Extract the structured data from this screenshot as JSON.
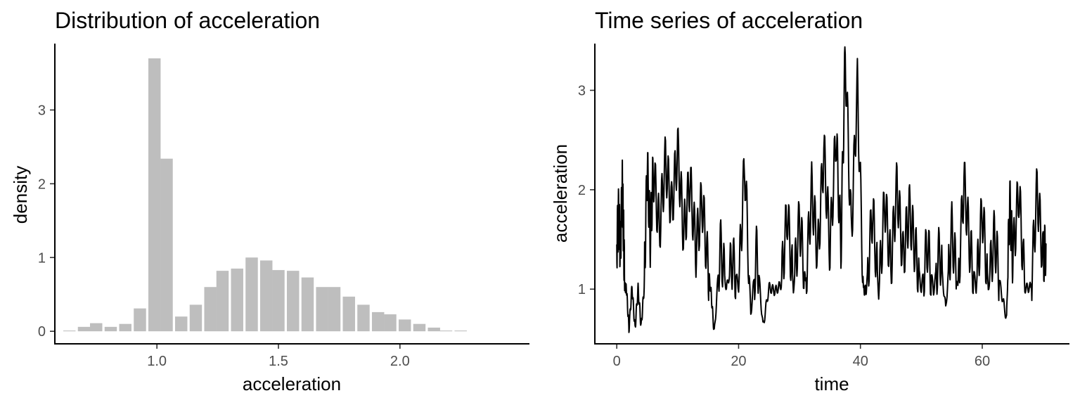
{
  "colors": {
    "bar_fill": "#bebebe",
    "line": "#000000",
    "axis": "#000000",
    "tick_text": "#4d4d4d"
  },
  "chart_data": [
    {
      "type": "bar",
      "title": "Distribution of acceleration",
      "xlabel": "acceleration",
      "ylabel": "density",
      "xlim": [
        0.58,
        2.53
      ],
      "ylim": [
        -0.17,
        3.9
      ],
      "xticks": [
        1.0,
        1.5,
        2.0
      ],
      "xtick_labels": [
        "1.0",
        "1.5",
        "2.0"
      ],
      "yticks": [
        0,
        1,
        2,
        3
      ],
      "ytick_labels": [
        "0",
        "1",
        "2",
        "3"
      ],
      "bin_width": 0.0575,
      "bin_centers": [
        0.64,
        0.7,
        0.75,
        0.81,
        0.87,
        0.93,
        0.99,
        1.04,
        1.1,
        1.16,
        1.22,
        1.27,
        1.33,
        1.39,
        1.45,
        1.5,
        1.56,
        1.62,
        1.68,
        1.73,
        1.79,
        1.85,
        1.91,
        1.96,
        2.02,
        2.08,
        2.14,
        2.19,
        2.25
      ],
      "values": [
        0.01,
        0.06,
        0.11,
        0.06,
        0.1,
        0.31,
        3.7,
        2.34,
        0.2,
        0.36,
        0.6,
        0.82,
        0.85,
        1.0,
        0.96,
        0.83,
        0.82,
        0.73,
        0.6,
        0.6,
        0.47,
        0.36,
        0.26,
        0.23,
        0.16,
        0.1,
        0.05,
        0.01,
        0.01
      ],
      "grid": false,
      "legend": "none"
    },
    {
      "type": "line",
      "title": "Time series of acceleration",
      "xlabel": "time",
      "ylabel": "acceleration",
      "xlim": [
        -3.6,
        74.2
      ],
      "ylim": [
        0.45,
        3.47
      ],
      "xticks": [
        0,
        20,
        40,
        60
      ],
      "xtick_labels": [
        "0",
        "20",
        "40",
        "60"
      ],
      "yticks": [
        1,
        2,
        3
      ],
      "ytick_labels": [
        "1",
        "2",
        "3"
      ],
      "x": [
        0,
        0.3,
        0.6,
        0.9,
        1.1,
        1.3,
        1.6,
        2.0,
        2.5,
        3.0,
        3.5,
        4.0,
        4.5,
        5.0,
        5.5,
        6.0,
        7.0,
        8.0,
        9.0,
        10.0,
        11.0,
        12.0,
        13.0,
        14.0,
        15.0,
        15.5,
        16.0,
        17.0,
        18.0,
        19.0,
        20.0,
        21.0,
        22.0,
        23.0,
        24.0,
        25.0,
        26.0,
        27.0,
        28.0,
        29.0,
        30.0,
        31.0,
        32.0,
        33.0,
        34.0,
        35.0,
        36.0,
        36.8,
        37.5,
        38.5,
        39.5,
        40.5,
        41.0,
        42.0,
        43.0,
        44.0,
        45.0,
        46.0,
        47.0,
        48.0,
        49.0,
        50.0,
        51.0,
        52.0,
        53.0,
        54.0,
        55.0,
        56.0,
        57.0,
        58.0,
        59.0,
        60.0,
        61.0,
        62.0,
        63.0,
        64.0,
        64.5,
        65.0,
        66.0,
        67.0,
        68.0,
        69.0,
        70.0,
        70.5
      ],
      "y": [
        1.45,
        1.75,
        1.4,
        2.05,
        1.6,
        1.02,
        1.0,
        0.6,
        1.02,
        0.6,
        1.01,
        0.62,
        1.02,
        2.26,
        1.5,
        2.2,
        1.6,
        2.3,
        1.8,
        2.4,
        1.55,
        2.1,
        1.4,
        1.9,
        1.2,
        0.95,
        0.55,
        1.45,
        1.0,
        1.3,
        1.02,
        2.28,
        0.75,
        1.4,
        0.62,
        1.02,
        0.98,
        1.05,
        1.78,
        1.0,
        1.7,
        1.05,
        2.0,
        1.35,
        2.4,
        1.4,
        2.57,
        1.42,
        3.38,
        1.55,
        3.04,
        0.98,
        1.0,
        1.8,
        0.95,
        1.9,
        1.22,
        2.05,
        1.3,
        1.8,
        1.4,
        1.0,
        1.45,
        0.98,
        1.4,
        0.8,
        1.6,
        1.0,
        2.1,
        1.4,
        1.01,
        1.8,
        1.0,
        1.55,
        1.01,
        0.7,
        1.9,
        1.3,
        2.0,
        1.01,
        1.02,
        2.0,
        1.3,
        1.45
      ],
      "grid": false,
      "legend": "none"
    }
  ]
}
